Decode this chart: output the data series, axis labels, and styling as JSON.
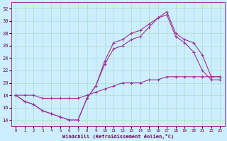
{
  "xlabel": "Windchill (Refroidissement éolien,°C)",
  "background_color": "#cceeff",
  "grid_color": "#aaddcc",
  "line_color": "#993399",
  "xlim": [
    -0.5,
    23.5
  ],
  "ylim": [
    13,
    33
  ],
  "yticks": [
    14,
    16,
    18,
    20,
    22,
    24,
    26,
    28,
    30,
    32
  ],
  "xticks": [
    0,
    1,
    2,
    3,
    4,
    5,
    6,
    7,
    8,
    9,
    10,
    11,
    12,
    13,
    14,
    15,
    16,
    17,
    18,
    19,
    20,
    21,
    22,
    23
  ],
  "line1_x": [
    0,
    1,
    2,
    3,
    4,
    5,
    6,
    7,
    8,
    9,
    10,
    11,
    12,
    13,
    14,
    15,
    16,
    17,
    18,
    19,
    20,
    21,
    22,
    23
  ],
  "line1_y": [
    18,
    17,
    16.5,
    15.5,
    15,
    14.5,
    14,
    14,
    17.5,
    19.5,
    23.5,
    26.5,
    27,
    28,
    28.5,
    29.5,
    30.5,
    31.5,
    28,
    27,
    26.5,
    24.5,
    21,
    21
  ],
  "line2_x": [
    0,
    1,
    2,
    3,
    4,
    5,
    6,
    7,
    8,
    9,
    10,
    11,
    12,
    13,
    14,
    15,
    16,
    17,
    18,
    19,
    20,
    21,
    22,
    23
  ],
  "line2_y": [
    18,
    17,
    16.5,
    15.5,
    15,
    14.5,
    14,
    14,
    17.5,
    19.5,
    23,
    25.5,
    26,
    27,
    27.5,
    29,
    30.5,
    31,
    27.5,
    26.5,
    25,
    22,
    20.5,
    20.5
  ],
  "line3_x": [
    0,
    1,
    2,
    3,
    4,
    5,
    6,
    7,
    8,
    9,
    10,
    11,
    12,
    13,
    14,
    15,
    16,
    17,
    18,
    19,
    20,
    21,
    22,
    23
  ],
  "line3_y": [
    18,
    18,
    18,
    17.5,
    17.5,
    17.5,
    17.5,
    17.5,
    18,
    18.5,
    19,
    19.5,
    20,
    20,
    20,
    20.5,
    20.5,
    21,
    21,
    21,
    21,
    21,
    21,
    21
  ]
}
